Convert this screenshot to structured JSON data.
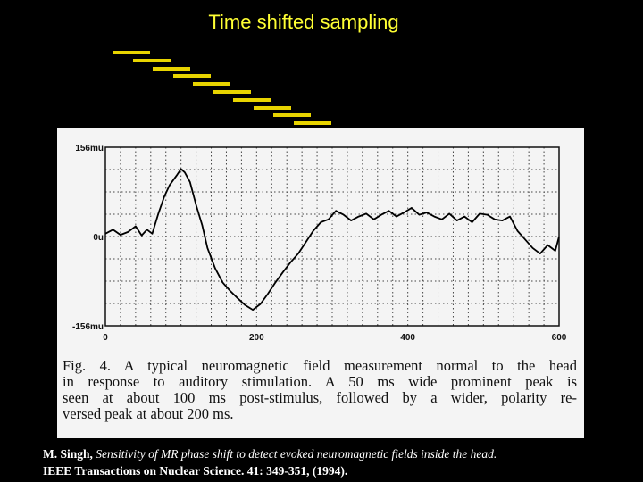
{
  "slide": {
    "title": "Time shifted sampling",
    "title_color": "#ffff33",
    "step_color": "#e8d400",
    "step_count": 10
  },
  "figure": {
    "background": "#f4f4f4",
    "caption_lines": [
      "Fig. 4.   A typical neuromagnetic field measurement normal to the head",
      "in response to auditory stimulation. A 50 ms wide prominent peak is",
      "seen at about 100 ms post-stimulus, followed by a wider, polarity re-",
      "versed peak at about 200 ms."
    ]
  },
  "chart_data": {
    "type": "line",
    "title": "",
    "xlabel": "",
    "ylabel": "",
    "xlim": [
      0,
      600
    ],
    "ylim": [
      -156,
      156
    ],
    "x_ticks": [
      "0",
      "200",
      "400",
      "600"
    ],
    "x_tick_values": [
      0,
      200,
      400,
      600
    ],
    "y_ticks": [
      "156mu",
      "0u",
      "-156mu"
    ],
    "y_tick_values": [
      156,
      0,
      -156
    ],
    "grid": true,
    "grid_style": "dotted",
    "series": [
      {
        "name": "",
        "x": [
          0,
          10,
          20,
          30,
          40,
          48,
          55,
          62,
          70,
          78,
          85,
          95,
          100,
          105,
          112,
          120,
          128,
          135,
          145,
          155,
          165,
          175,
          185,
          195,
          205,
          215,
          225,
          235,
          245,
          255,
          265,
          275,
          285,
          295,
          305,
          315,
          325,
          335,
          345,
          355,
          365,
          375,
          385,
          395,
          405,
          415,
          425,
          435,
          445,
          455,
          465,
          475,
          485,
          495,
          505,
          515,
          525,
          535,
          545,
          555,
          565,
          575,
          585,
          595,
          600
        ],
        "y": [
          5,
          12,
          3,
          8,
          18,
          2,
          12,
          5,
          40,
          70,
          90,
          108,
          118,
          112,
          95,
          55,
          20,
          -20,
          -55,
          -80,
          -95,
          -108,
          -120,
          -128,
          -118,
          -100,
          -80,
          -62,
          -45,
          -30,
          -10,
          10,
          25,
          30,
          45,
          38,
          28,
          35,
          40,
          30,
          38,
          45,
          35,
          42,
          50,
          38,
          42,
          35,
          30,
          40,
          28,
          35,
          25,
          40,
          38,
          30,
          28,
          35,
          10,
          -5,
          -20,
          -30,
          -15,
          -25,
          0
        ]
      }
    ]
  },
  "reference": {
    "author": "M. Singh,",
    "title": "Sensitivity of MR phase shift to detect evoked neuromagnetic fields inside the head.",
    "journal": "IEEE Transactions on Nuclear Science. 41: 349-351, (1994)."
  }
}
